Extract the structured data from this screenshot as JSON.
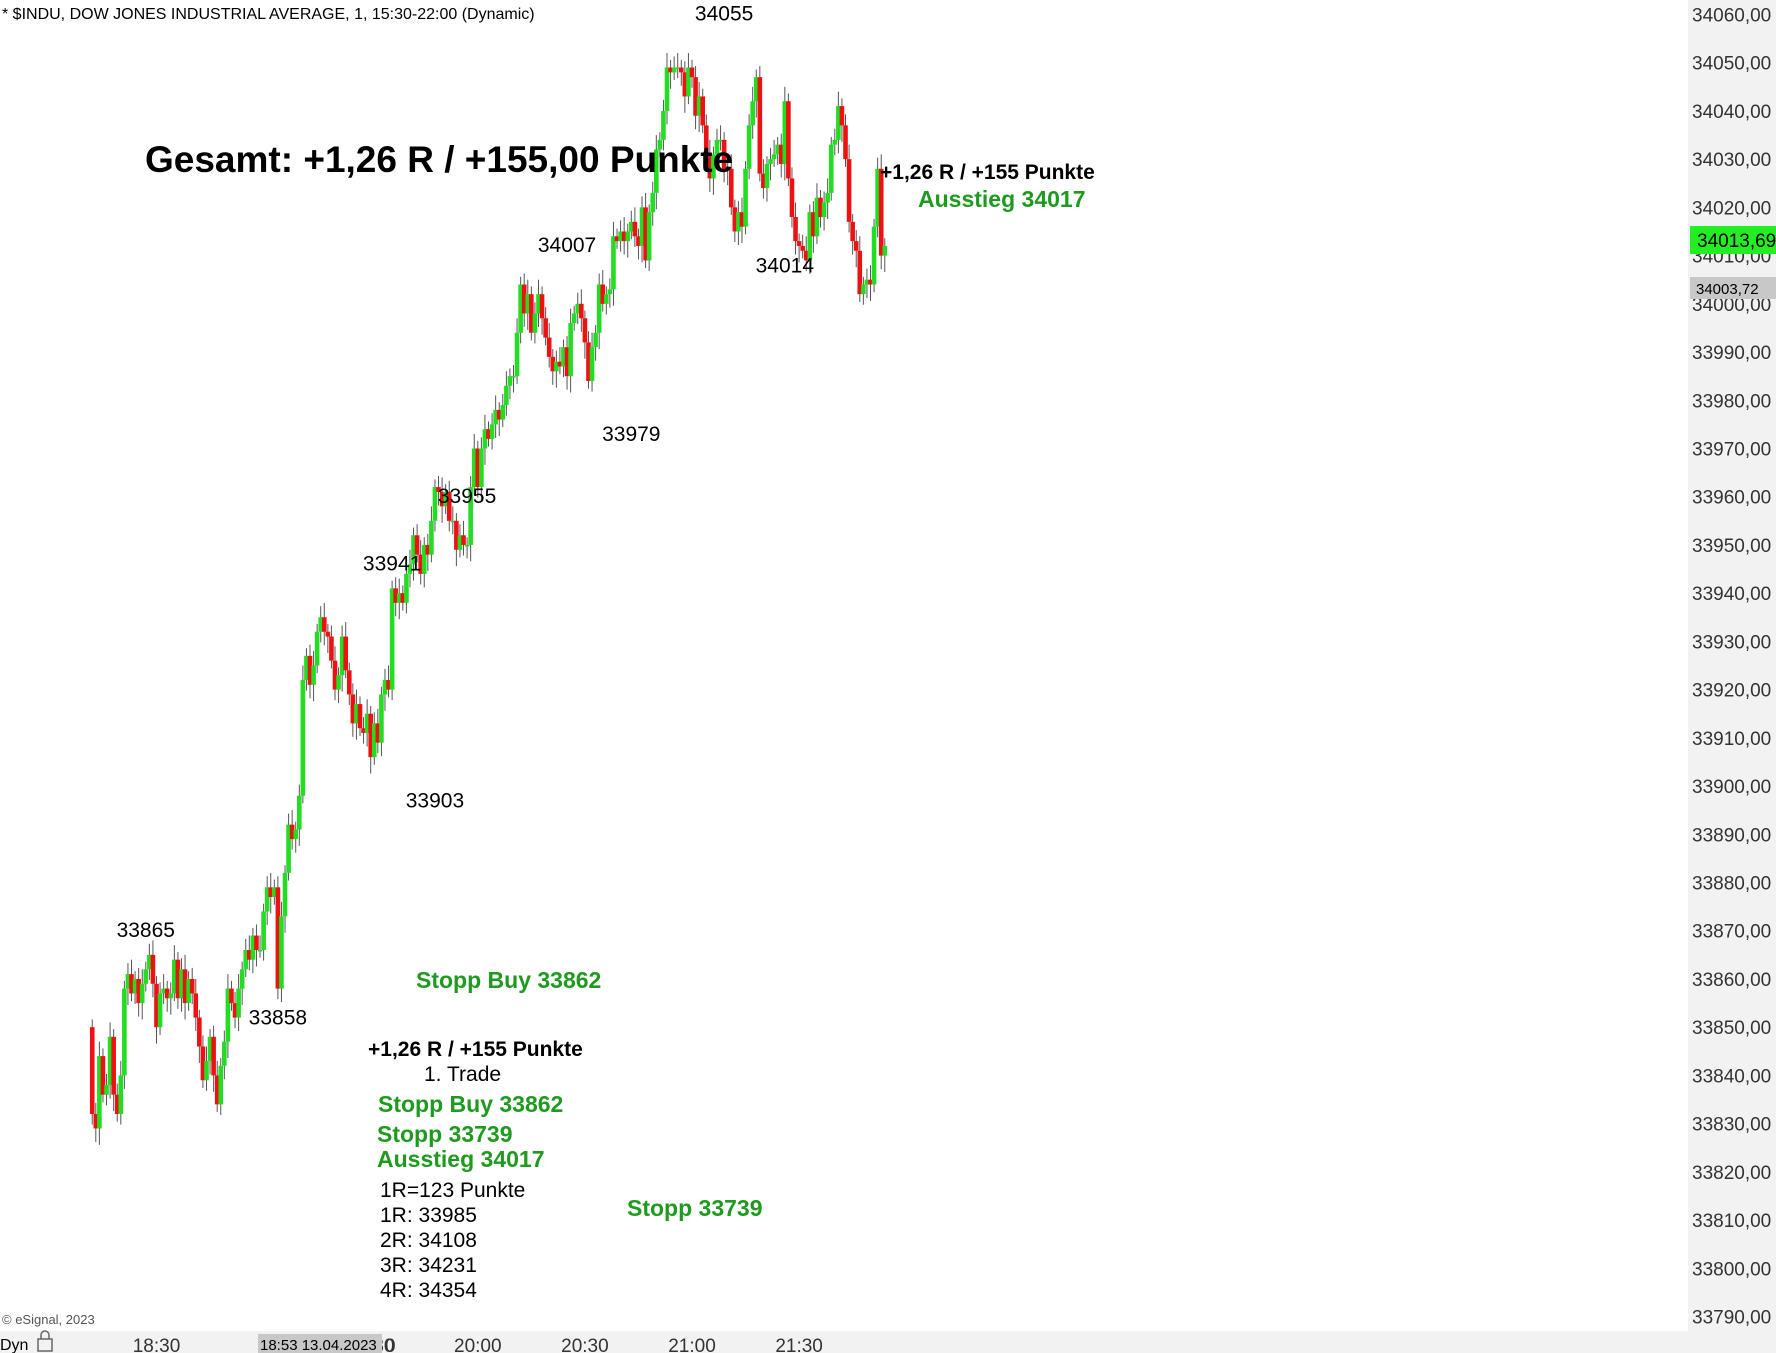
{
  "header": {
    "title": "* $INDU, DOW JONES INDUSTRIAL AVERAGE, 1, 15:30-22:00 (Dynamic)"
  },
  "footer": {
    "copyright": "© eSignal, 2023",
    "dyn_label": "Dyn",
    "cursor_label": "18:53 13.04.2023"
  },
  "colors": {
    "up": "#22dd22",
    "down": "#ee1111",
    "wick": "#555555",
    "annotation_green": "#1e9b1e",
    "current_price_bg": "#22ee22",
    "ref_price_bg": "#c8c8c8"
  },
  "chart_data": {
    "type": "candlestick",
    "title": "",
    "xlabel": "",
    "ylabel": "",
    "ylim": [
      33787,
      34063
    ],
    "y_ticks": [
      "34060,00",
      "34050,00",
      "34040,00",
      "34030,00",
      "34020,00",
      "34010,00",
      "34000,00",
      "33990,00",
      "33980,00",
      "33970,00",
      "33960,00",
      "33950,00",
      "33940,00",
      "33930,00",
      "33920,00",
      "33910,00",
      "33900,00",
      "33890,00",
      "33880,00",
      "33870,00",
      "33860,00",
      "33850,00",
      "33840,00",
      "33830,00",
      "33820,00",
      "33810,00",
      "33800,00",
      "33790,00"
    ],
    "x_ticks": [
      {
        "label": "18:30",
        "minute": 180
      },
      {
        "label": "19:30",
        "minute": 240
      },
      {
        "label": "20:00",
        "minute": 270
      },
      {
        "label": "20:30",
        "minute": 300
      },
      {
        "label": "21:00",
        "minute": 330
      },
      {
        "label": "21:30",
        "minute": 360
      }
    ],
    "x_tick_partial": {
      "label": "0",
      "minute": 210
    },
    "first_candle_minute": 162,
    "candles_o_c": [
      [
        33850,
        33832
      ],
      [
        33832,
        33829
      ],
      [
        33829,
        33844
      ],
      [
        33844,
        33836
      ],
      [
        33836,
        33838
      ],
      [
        33838,
        33848
      ],
      [
        33848,
        33836
      ],
      [
        33836,
        33832
      ],
      [
        33832,
        33840
      ],
      [
        33840,
        33858
      ],
      [
        33858,
        33861
      ],
      [
        33861,
        33857
      ],
      [
        33857,
        33860
      ],
      [
        33860,
        33855
      ],
      [
        33855,
        33859
      ],
      [
        33859,
        33862
      ],
      [
        33862,
        33865
      ],
      [
        33865,
        33859
      ],
      [
        33859,
        33850
      ],
      [
        33850,
        33857
      ],
      [
        33857,
        33858
      ],
      [
        33858,
        33856
      ],
      [
        33856,
        33857
      ],
      [
        33857,
        33864
      ],
      [
        33864,
        33856
      ],
      [
        33856,
        33862
      ],
      [
        33862,
        33855
      ],
      [
        33855,
        33860
      ],
      [
        33860,
        33857
      ],
      [
        33857,
        33852
      ],
      [
        33852,
        33846
      ],
      [
        33846,
        33839
      ],
      [
        33839,
        33843
      ],
      [
        33843,
        33848
      ],
      [
        33848,
        33840
      ],
      [
        33840,
        33834
      ],
      [
        33834,
        33842
      ],
      [
        33842,
        33847
      ],
      [
        33847,
        33858
      ],
      [
        33858,
        33855
      ],
      [
        33855,
        33852
      ],
      [
        33852,
        33858
      ],
      [
        33858,
        33862
      ],
      [
        33862,
        33866
      ],
      [
        33866,
        33864
      ],
      [
        33864,
        33869
      ],
      [
        33869,
        33866
      ],
      [
        33866,
        33866
      ],
      [
        33866,
        33874
      ],
      [
        33874,
        33879
      ],
      [
        33879,
        33877
      ],
      [
        33877,
        33879
      ],
      [
        33879,
        33858
      ],
      [
        33858,
        33873
      ],
      [
        33873,
        33882
      ],
      [
        33882,
        33892
      ],
      [
        33892,
        33889
      ],
      [
        33889,
        33891
      ],
      [
        33891,
        33898
      ],
      [
        33898,
        33922
      ],
      [
        33922,
        33927
      ],
      [
        33927,
        33921
      ],
      [
        33921,
        33925
      ],
      [
        33925,
        33932
      ],
      [
        33932,
        33935
      ],
      [
        33935,
        33932
      ],
      [
        33932,
        33931
      ],
      [
        33931,
        33926
      ],
      [
        33926,
        33920
      ],
      [
        33920,
        33923
      ],
      [
        33923,
        33931
      ],
      [
        33931,
        33924
      ],
      [
        33924,
        33919
      ],
      [
        33919,
        33913
      ],
      [
        33913,
        33917
      ],
      [
        33917,
        33912
      ],
      [
        33912,
        33911
      ],
      [
        33911,
        33915
      ],
      [
        33915,
        33906
      ],
      [
        33906,
        33913
      ],
      [
        33913,
        33909
      ],
      [
        33909,
        33919
      ],
      [
        33919,
        33922
      ],
      [
        33922,
        33920
      ],
      [
        33920,
        33941
      ],
      [
        33941,
        33938
      ],
      [
        33938,
        33940
      ],
      [
        33940,
        33938
      ],
      [
        33938,
        33944
      ],
      [
        33944,
        33946
      ],
      [
        33946,
        33952
      ],
      [
        33952,
        33948
      ],
      [
        33948,
        33944
      ],
      [
        33944,
        33950
      ],
      [
        33950,
        33948
      ],
      [
        33948,
        33955
      ],
      [
        33955,
        33962
      ],
      [
        33962,
        33961
      ],
      [
        33961,
        33958
      ],
      [
        33958,
        33961
      ],
      [
        33961,
        33955
      ],
      [
        33955,
        33955
      ],
      [
        33955,
        33949
      ],
      [
        33949,
        33952
      ],
      [
        33952,
        33950
      ],
      [
        33950,
        33950
      ],
      [
        33950,
        33962
      ],
      [
        33962,
        33970
      ],
      [
        33970,
        33962
      ],
      [
        33962,
        33970
      ],
      [
        33970,
        33974
      ],
      [
        33974,
        33972
      ],
      [
        33972,
        33975
      ],
      [
        33975,
        33978
      ],
      [
        33978,
        33976
      ],
      [
        33976,
        33979
      ],
      [
        33979,
        33983
      ],
      [
        33983,
        33985
      ],
      [
        33985,
        33985
      ],
      [
        33985,
        33994
      ],
      [
        33994,
        34004
      ],
      [
        34004,
        33998
      ],
      [
        33998,
        34002
      ],
      [
        34002,
        33994
      ],
      [
        33994,
        33998
      ],
      [
        33998,
        34002
      ],
      [
        34002,
        33997
      ],
      [
        33997,
        33993
      ],
      [
        33993,
        33989
      ],
      [
        33989,
        33986
      ],
      [
        33986,
        33988
      ],
      [
        33988,
        33987
      ],
      [
        33987,
        33991
      ],
      [
        33991,
        33985
      ],
      [
        33985,
        33996
      ],
      [
        33996,
        33998
      ],
      [
        33998,
        34000
      ],
      [
        34000,
        33997
      ],
      [
        33997,
        33992
      ],
      [
        33992,
        33984
      ],
      [
        33984,
        33991
      ],
      [
        33991,
        33994
      ],
      [
        33994,
        34004
      ],
      [
        34004,
        34000
      ],
      [
        34000,
        34002
      ],
      [
        34002,
        34003
      ],
      [
        34003,
        34014
      ],
      [
        34014,
        34013
      ],
      [
        34013,
        34015
      ],
      [
        34015,
        34013
      ],
      [
        34013,
        34015
      ],
      [
        34015,
        34017
      ],
      [
        34017,
        34014
      ],
      [
        34014,
        34012
      ],
      [
        34012,
        34020
      ],
      [
        34020,
        34009
      ],
      [
        34009,
        34019
      ],
      [
        34019,
        34023
      ],
      [
        34023,
        34032
      ],
      [
        34032,
        34034
      ],
      [
        34034,
        34040
      ],
      [
        34040,
        34049
      ],
      [
        34049,
        34048
      ],
      [
        34048,
        34049
      ],
      [
        34049,
        34049
      ],
      [
        34049,
        34048
      ],
      [
        34048,
        34043
      ],
      [
        34043,
        34049
      ],
      [
        34049,
        34047
      ],
      [
        34047,
        34039
      ],
      [
        34039,
        34043
      ],
      [
        34043,
        34037
      ],
      [
        34037,
        34031
      ],
      [
        34031,
        34026
      ],
      [
        34026,
        34031
      ],
      [
        34031,
        34034
      ],
      [
        34034,
        34034
      ],
      [
        34034,
        34028
      ],
      [
        34028,
        34028
      ],
      [
        34028,
        34020
      ],
      [
        34020,
        34015
      ],
      [
        34015,
        34019
      ],
      [
        34019,
        34016
      ],
      [
        34016,
        34028
      ],
      [
        34028,
        34037
      ],
      [
        34037,
        34042
      ],
      [
        34042,
        34047
      ],
      [
        34047,
        34027
      ],
      [
        34027,
        34024
      ],
      [
        34024,
        34029
      ],
      [
        34029,
        34030
      ],
      [
        34030,
        34031
      ],
      [
        34031,
        34033
      ],
      [
        34033,
        34029
      ],
      [
        34029,
        34042
      ],
      [
        34042,
        34026
      ],
      [
        34026,
        34018
      ],
      [
        34018,
        34013
      ],
      [
        34013,
        34012
      ],
      [
        34012,
        34011
      ],
      [
        34011,
        34009
      ],
      [
        34009,
        34019
      ],
      [
        34019,
        34014
      ],
      [
        34014,
        34022
      ],
      [
        34022,
        34018
      ],
      [
        34018,
        34021
      ],
      [
        34021,
        34023
      ],
      [
        34023,
        34033
      ],
      [
        34033,
        34034
      ],
      [
        34034,
        34041
      ],
      [
        34041,
        34037
      ],
      [
        34037,
        34030
      ],
      [
        34030,
        34017
      ],
      [
        34017,
        34013
      ],
      [
        34013,
        34011
      ],
      [
        34011,
        34002
      ],
      [
        34002,
        34004
      ],
      [
        34004,
        34005
      ],
      [
        34005,
        34004
      ],
      [
        34004,
        34016
      ],
      [
        34016,
        34028
      ],
      [
        34028,
        34010
      ],
      [
        34010,
        34012
      ]
    ],
    "y_axis_labels": {
      "current_price": "34013,69",
      "reference_price": "34003,72"
    },
    "price_labels": [
      {
        "text": "33865",
        "value": 33865,
        "minute": 177
      },
      {
        "text": "33858",
        "value": 33858,
        "minute": 214
      },
      {
        "text": "33941",
        "value": 33941,
        "minute": 246
      },
      {
        "text": "33903",
        "value": 33903,
        "minute": 258
      },
      {
        "text": "33955",
        "value": 33955,
        "minute": 267
      },
      {
        "text": "34007",
        "value": 34007,
        "minute": 295
      },
      {
        "text": "33979",
        "value": 33979,
        "minute": 313
      },
      {
        "text": "34055",
        "value": 34055,
        "minute": 339
      },
      {
        "text": "34014",
        "value": 34014,
        "minute": 356
      }
    ]
  },
  "annotations": {
    "gesamt": "Gesamt: +1,26 R / +155,00 Punkte",
    "top_result": "+1,26 R / +155 Punkte",
    "top_exit": "Ausstieg 34017",
    "stopp_buy_side": "Stopp Buy 33862",
    "stopp_side": "Stopp 33739",
    "trade_result": "+1,26 R / +155 Punkte",
    "trade_name": "1. Trade",
    "trade_stopp_buy": "Stopp Buy 33862",
    "trade_stopp": "Stopp 33739",
    "trade_exit": "Ausstieg 34017",
    "r_lines": [
      "1R=123 Punkte",
      "1R: 33985",
      "2R: 34108",
      "3R: 34231",
      "4R: 34354"
    ]
  }
}
